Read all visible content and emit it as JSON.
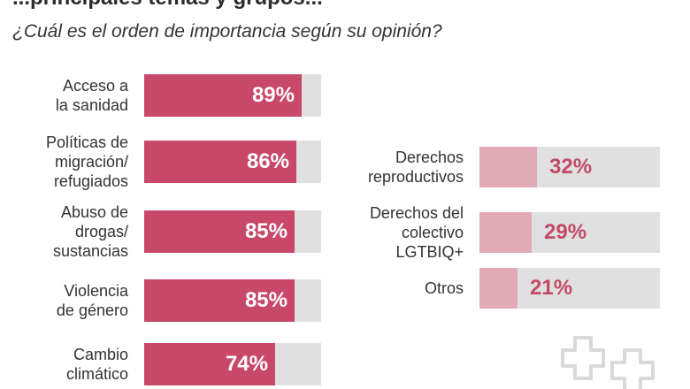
{
  "header": {
    "title_partial": "...principales temas y grupos...",
    "question": "¿Cuál es el orden de importancia según su opinión?"
  },
  "colors": {
    "strong_bar": "#c8486a",
    "soft_bar": "#e2a9b6",
    "track": "#e0e0e0",
    "soft_text": "#c24a66"
  },
  "chart_data": {
    "type": "bar",
    "orientation": "horizontal",
    "title": "¿Cuál es el orden de importancia según su opinión?",
    "xlim": [
      0,
      100
    ],
    "unit": "%",
    "groups": [
      {
        "name": "left",
        "style": "strong",
        "categories": [
          "Acceso a\nla sanidad",
          "Políticas de\nmigración/\nrefugiados",
          "Abuso de\ndrogas/\nsustancias",
          "Violencia\nde género",
          "Cambio\nclimático"
        ],
        "values": [
          89,
          86,
          85,
          85,
          74
        ],
        "labels": [
          "89%",
          "86%",
          "85%",
          "85%",
          "74%"
        ]
      },
      {
        "name": "right",
        "style": "soft",
        "categories": [
          "Derechos\nreproductivos",
          "Derechos del\ncolectivo\nLGTBIQ+",
          "Otros"
        ],
        "values": [
          32,
          29,
          21
        ],
        "labels": [
          "32%",
          "29%",
          "21%"
        ]
      }
    ]
  }
}
